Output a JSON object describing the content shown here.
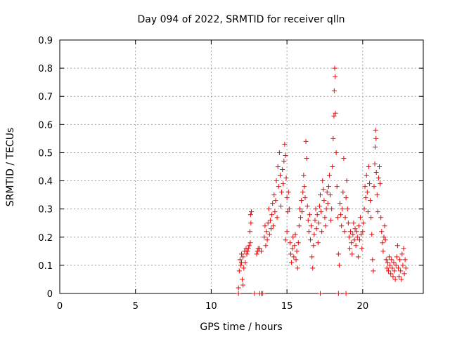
{
  "chart_data": {
    "type": "scatter",
    "title": "Day 094 of 2022, SRMTID for receiver qlln",
    "xlabel": "GPS time / hours",
    "ylabel": "SRMTID / TECUs",
    "xlim": [
      0,
      24
    ],
    "ylim": [
      0,
      0.9
    ],
    "xticks": [
      0,
      5,
      10,
      15,
      20
    ],
    "yticks": [
      0,
      0.1,
      0.2,
      0.3,
      0.4,
      0.5,
      0.6,
      0.7,
      0.8,
      0.9
    ],
    "xtick_labels": [
      "0",
      "5",
      "10",
      "15",
      "20"
    ],
    "ytick_labels": [
      "0",
      "0.1",
      "0.2",
      "0.3",
      "0.4",
      "0.5",
      "0.6",
      "0.7",
      "0.8",
      "0.9"
    ],
    "grid": true,
    "marker": "+",
    "color": "#ff0000",
    "series": [
      {
        "name": "SRMTID",
        "points": [
          [
            11.8,
            0.02
          ],
          [
            11.85,
            0.08
          ],
          [
            11.9,
            0.12
          ],
          [
            11.95,
            0.1
          ],
          [
            12.0,
            0.14
          ],
          [
            12.05,
            0.05
          ],
          [
            12.1,
            0.13
          ],
          [
            12.15,
            0.09
          ],
          [
            12.2,
            0.15
          ],
          [
            12.25,
            0.11
          ],
          [
            12.3,
            0.16
          ],
          [
            12.35,
            0.14
          ],
          [
            12.4,
            0.15
          ],
          [
            12.45,
            0.16
          ],
          [
            12.5,
            0.17
          ],
          [
            12.55,
            0.22
          ],
          [
            12.6,
            0.28
          ],
          [
            12.62,
            0.25
          ],
          [
            12.65,
            0.29
          ],
          [
            12.58,
            0.18
          ],
          [
            12.1,
            0.03
          ],
          [
            12.0,
            0.11
          ],
          [
            13.0,
            0.14
          ],
          [
            13.05,
            0.15
          ],
          [
            13.1,
            0.16
          ],
          [
            13.2,
            0.16
          ],
          [
            13.3,
            0.15
          ],
          [
            13.5,
            0.2
          ],
          [
            13.55,
            0.24
          ],
          [
            13.6,
            0.17
          ],
          [
            13.65,
            0.22
          ],
          [
            13.7,
            0.19
          ],
          [
            13.75,
            0.25
          ],
          [
            13.8,
            0.3
          ],
          [
            13.85,
            0.21
          ],
          [
            13.9,
            0.26
          ],
          [
            13.95,
            0.23
          ],
          [
            14.0,
            0.28
          ],
          [
            14.05,
            0.32
          ],
          [
            14.1,
            0.24
          ],
          [
            14.15,
            0.35
          ],
          [
            14.2,
            0.29
          ],
          [
            14.25,
            0.33
          ],
          [
            14.3,
            0.4
          ],
          [
            14.35,
            0.27
          ],
          [
            14.4,
            0.45
          ],
          [
            14.45,
            0.38
          ],
          [
            14.5,
            0.5
          ],
          [
            14.55,
            0.42
          ],
          [
            14.6,
            0.31
          ],
          [
            14.65,
            0.36
          ],
          [
            14.7,
            0.44
          ],
          [
            14.75,
            0.39
          ],
          [
            14.8,
            0.47
          ],
          [
            14.85,
            0.53
          ],
          [
            14.9,
            0.49
          ],
          [
            14.95,
            0.41
          ],
          [
            15.0,
            0.34
          ],
          [
            15.05,
            0.29
          ],
          [
            15.1,
            0.36
          ],
          [
            15.15,
            0.3
          ],
          [
            14.9,
            0.19
          ],
          [
            15.0,
            0.22
          ],
          [
            15.2,
            0.18
          ],
          [
            15.25,
            0.14
          ],
          [
            15.3,
            0.11
          ],
          [
            15.35,
            0.16
          ],
          [
            15.4,
            0.2
          ],
          [
            15.45,
            0.13
          ],
          [
            15.5,
            0.17
          ],
          [
            15.55,
            0.21
          ],
          [
            15.6,
            0.12
          ],
          [
            15.65,
            0.15
          ],
          [
            15.7,
            0.09
          ],
          [
            15.75,
            0.18
          ],
          [
            15.8,
            0.24
          ],
          [
            15.85,
            0.3
          ],
          [
            15.9,
            0.27
          ],
          [
            15.95,
            0.33
          ],
          [
            16.0,
            0.29
          ],
          [
            16.05,
            0.36
          ],
          [
            16.1,
            0.42
          ],
          [
            16.15,
            0.38
          ],
          [
            16.2,
            0.34
          ],
          [
            16.25,
            0.54
          ],
          [
            16.3,
            0.48
          ],
          [
            16.35,
            0.31
          ],
          [
            16.4,
            0.26
          ],
          [
            16.45,
            0.22
          ],
          [
            16.5,
            0.28
          ],
          [
            16.55,
            0.19
          ],
          [
            16.6,
            0.24
          ],
          [
            16.65,
            0.13
          ],
          [
            16.7,
            0.09
          ],
          [
            16.75,
            0.17
          ],
          [
            16.8,
            0.21
          ],
          [
            16.85,
            0.26
          ],
          [
            16.9,
            0.3
          ],
          [
            16.95,
            0.23
          ],
          [
            17.0,
            0.28
          ],
          [
            17.05,
            0.18
          ],
          [
            17.1,
            0.25
          ],
          [
            17.15,
            0.31
          ],
          [
            17.2,
            0.35
          ],
          [
            17.25,
            0.29
          ],
          [
            17.3,
            0.22
          ],
          [
            17.35,
            0.4
          ],
          [
            17.4,
            0.37
          ],
          [
            17.45,
            0.33
          ],
          [
            17.5,
            0.27
          ],
          [
            17.55,
            0.24
          ],
          [
            17.6,
            0.3
          ],
          [
            17.65,
            0.36
          ],
          [
            17.7,
            0.32
          ],
          [
            17.75,
            0.38
          ],
          [
            17.8,
            0.42
          ],
          [
            17.85,
            0.35
          ],
          [
            17.9,
            0.26
          ],
          [
            17.95,
            0.3
          ],
          [
            18.0,
            0.45
          ],
          [
            18.05,
            0.55
          ],
          [
            18.1,
            0.63
          ],
          [
            18.12,
            0.72
          ],
          [
            18.15,
            0.8
          ],
          [
            18.18,
            0.77
          ],
          [
            18.2,
            0.64
          ],
          [
            18.25,
            0.5
          ],
          [
            18.3,
            0.38
          ],
          [
            18.35,
            0.27
          ],
          [
            18.4,
            0.14
          ],
          [
            18.45,
            0.1
          ],
          [
            18.5,
            0.32
          ],
          [
            18.55,
            0.28
          ],
          [
            18.6,
            0.24
          ],
          [
            18.65,
            0.3
          ],
          [
            18.7,
            0.36
          ],
          [
            18.75,
            0.48
          ],
          [
            18.8,
            0.22
          ],
          [
            18.85,
            0.27
          ],
          [
            18.9,
            0.34
          ],
          [
            18.95,
            0.4
          ],
          [
            19.0,
            0.3
          ],
          [
            19.05,
            0.25
          ],
          [
            19.1,
            0.2
          ],
          [
            19.15,
            0.16
          ],
          [
            19.2,
            0.22
          ],
          [
            19.25,
            0.18
          ],
          [
            19.3,
            0.14
          ],
          [
            19.35,
            0.21
          ],
          [
            19.4,
            0.25
          ],
          [
            19.45,
            0.19
          ],
          [
            19.5,
            0.23
          ],
          [
            19.55,
            0.17
          ],
          [
            19.6,
            0.22
          ],
          [
            19.65,
            0.2
          ],
          [
            19.7,
            0.13
          ],
          [
            19.75,
            0.24
          ],
          [
            19.8,
            0.19
          ],
          [
            19.85,
            0.27
          ],
          [
            19.9,
            0.21
          ],
          [
            19.95,
            0.16
          ],
          [
            20.0,
            0.22
          ],
          [
            20.05,
            0.25
          ],
          [
            20.1,
            0.3
          ],
          [
            20.15,
            0.38
          ],
          [
            20.2,
            0.34
          ],
          [
            20.25,
            0.42
          ],
          [
            20.3,
            0.36
          ],
          [
            20.35,
            0.29
          ],
          [
            20.4,
            0.45
          ],
          [
            20.45,
            0.39
          ],
          [
            20.5,
            0.33
          ],
          [
            20.55,
            0.27
          ],
          [
            20.6,
            0.21
          ],
          [
            20.65,
            0.12
          ],
          [
            20.7,
            0.08
          ],
          [
            20.75,
            0.38
          ],
          [
            20.8,
            0.46
          ],
          [
            20.82,
            0.52
          ],
          [
            20.85,
            0.58
          ],
          [
            20.88,
            0.55
          ],
          [
            20.9,
            0.43
          ],
          [
            20.95,
            0.35
          ],
          [
            21.0,
            0.29
          ],
          [
            21.05,
            0.41
          ],
          [
            21.1,
            0.45
          ],
          [
            21.15,
            0.39
          ],
          [
            21.2,
            0.27
          ],
          [
            21.25,
            0.22
          ],
          [
            21.3,
            0.18
          ],
          [
            21.35,
            0.15
          ],
          [
            21.4,
            0.2
          ],
          [
            21.45,
            0.24
          ],
          [
            21.5,
            0.19
          ],
          [
            21.55,
            0.12
          ],
          [
            21.6,
            0.09
          ],
          [
            21.65,
            0.11
          ],
          [
            21.7,
            0.08
          ],
          [
            21.75,
            0.13
          ],
          [
            21.8,
            0.1
          ],
          [
            21.85,
            0.07
          ],
          [
            21.9,
            0.12
          ],
          [
            21.95,
            0.09
          ],
          [
            22.0,
            0.06
          ],
          [
            22.05,
            0.11
          ],
          [
            22.1,
            0.08
          ],
          [
            22.15,
            0.05
          ],
          [
            22.2,
            0.1
          ],
          [
            22.25,
            0.13
          ],
          [
            22.3,
            0.17
          ],
          [
            22.35,
            0.09
          ],
          [
            22.4,
            0.06
          ],
          [
            22.45,
            0.12
          ],
          [
            22.5,
            0.08
          ],
          [
            22.55,
            0.05
          ],
          [
            22.6,
            0.14
          ],
          [
            22.65,
            0.1
          ],
          [
            22.7,
            0.16
          ],
          [
            22.75,
            0.07
          ],
          [
            22.8,
            0.12
          ],
          [
            22.85,
            0.09
          ],
          [
            11.8,
            0.0
          ],
          [
            12.85,
            0.0
          ],
          [
            13.2,
            0.0
          ],
          [
            13.3,
            0.0
          ],
          [
            13.4,
            0.0
          ],
          [
            17.2,
            0.0
          ],
          [
            18.4,
            0.0
          ],
          [
            18.9,
            0.0
          ]
        ]
      }
    ]
  }
}
